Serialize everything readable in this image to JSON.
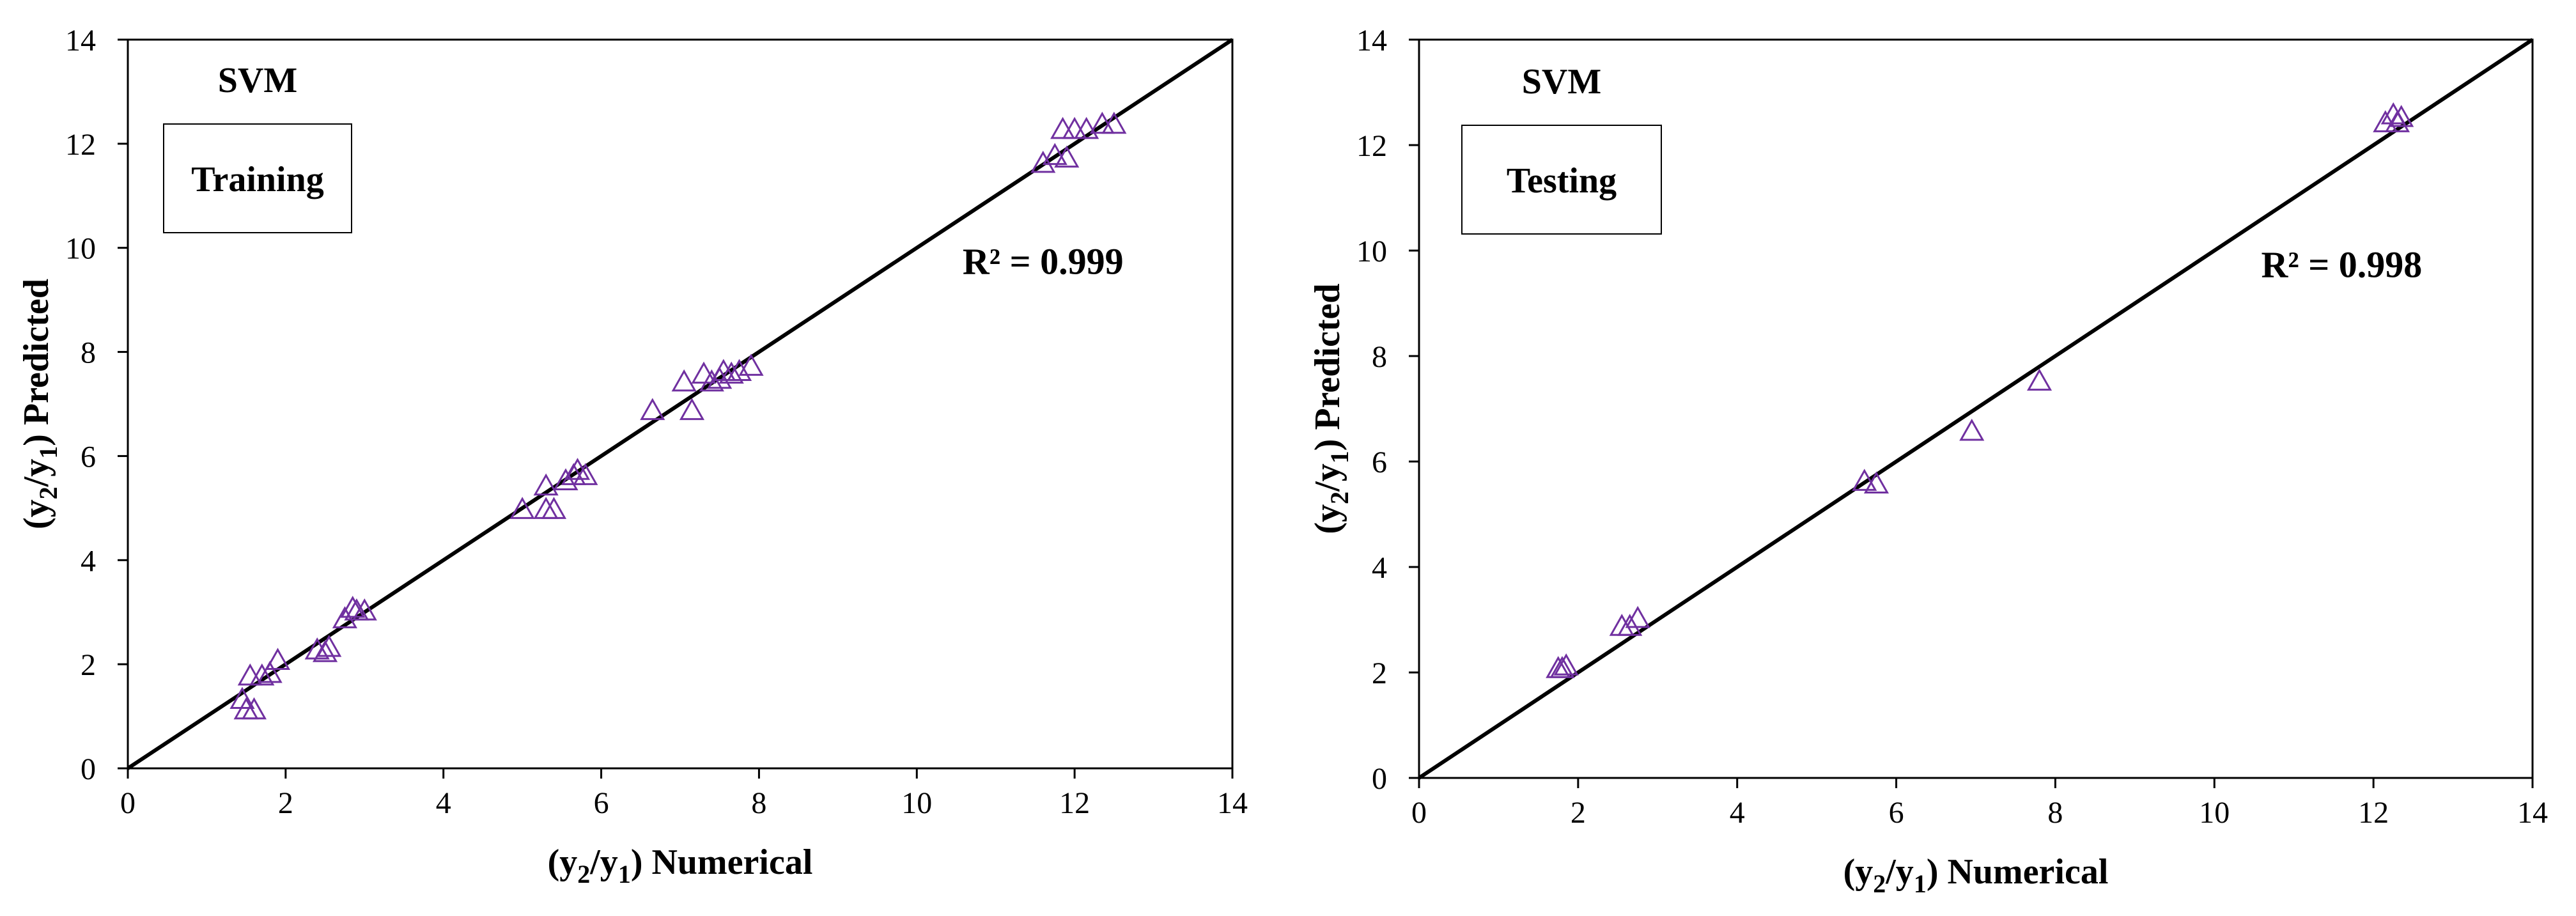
{
  "chart_data": [
    {
      "type": "scatter",
      "model_label": "SVM",
      "set_label": "Training",
      "r2_label": "R² = 0.999",
      "xlabel": {
        "pre": "(y",
        "sub1": "2",
        "mid": "/y",
        "sub2": "1",
        "post": ") Numerical"
      },
      "ylabel": {
        "pre": "(y",
        "sub1": "2",
        "mid": "/y",
        "sub2": "1",
        "post": ") Predicted"
      },
      "xlim": [
        0,
        14
      ],
      "ylim": [
        0,
        14
      ],
      "xticks": [
        0,
        2,
        4,
        6,
        8,
        10,
        12,
        14
      ],
      "yticks": [
        0,
        2,
        4,
        6,
        8,
        10,
        12,
        14
      ],
      "reference_line": {
        "from": [
          0,
          0
        ],
        "to": [
          14,
          14
        ],
        "color": "#000000"
      },
      "marker": "triangle-open",
      "marker_color": "#7030A0",
      "series": [
        {
          "name": "Training",
          "points": [
            [
              1.45,
              1.3
            ],
            [
              1.5,
              1.1
            ],
            [
              1.6,
              1.1
            ],
            [
              1.55,
              1.75
            ],
            [
              1.7,
              1.75
            ],
            [
              1.8,
              1.8
            ],
            [
              1.9,
              2.05
            ],
            [
              2.4,
              2.25
            ],
            [
              2.5,
              2.2
            ],
            [
              2.55,
              2.3
            ],
            [
              2.75,
              2.85
            ],
            [
              2.85,
              3.05
            ],
            [
              2.9,
              3.0
            ],
            [
              3.0,
              3.0
            ],
            [
              5.0,
              4.95
            ],
            [
              5.3,
              4.95
            ],
            [
              5.4,
              4.95
            ],
            [
              5.3,
              5.4
            ],
            [
              5.55,
              5.5
            ],
            [
              5.65,
              5.6
            ],
            [
              5.7,
              5.7
            ],
            [
              5.8,
              5.6
            ],
            [
              6.65,
              6.85
            ],
            [
              7.05,
              7.4
            ],
            [
              7.15,
              6.85
            ],
            [
              7.3,
              7.55
            ],
            [
              7.4,
              7.4
            ],
            [
              7.5,
              7.45
            ],
            [
              7.55,
              7.6
            ],
            [
              7.65,
              7.55
            ],
            [
              7.75,
              7.6
            ],
            [
              7.9,
              7.7
            ],
            [
              11.6,
              11.6
            ],
            [
              11.75,
              11.75
            ],
            [
              11.85,
              12.25
            ],
            [
              11.9,
              11.7
            ],
            [
              12.0,
              12.25
            ],
            [
              12.15,
              12.25
            ],
            [
              12.35,
              12.35
            ],
            [
              12.5,
              12.35
            ]
          ]
        }
      ]
    },
    {
      "type": "scatter",
      "model_label": "SVM",
      "set_label": "Testing",
      "r2_label": "R² = 0.998",
      "xlabel": {
        "pre": "(y",
        "sub1": "2",
        "mid": "/y",
        "sub2": "1",
        "post": ") Numerical"
      },
      "ylabel": {
        "pre": "(y",
        "sub1": "2",
        "mid": "/y",
        "sub2": "1",
        "post": ") Predicted"
      },
      "xlim": [
        0,
        14
      ],
      "ylim": [
        0,
        14
      ],
      "xticks": [
        0,
        2,
        4,
        6,
        8,
        10,
        12,
        14
      ],
      "yticks": [
        0,
        2,
        4,
        6,
        8,
        10,
        12,
        14
      ],
      "reference_line": {
        "from": [
          0,
          0
        ],
        "to": [
          14,
          14
        ],
        "color": "#000000"
      },
      "marker": "triangle-open",
      "marker_color": "#7030A0",
      "series": [
        {
          "name": "Testing",
          "points": [
            [
              1.75,
              2.05
            ],
            [
              1.85,
              2.1
            ],
            [
              1.8,
              2.05
            ],
            [
              2.55,
              2.85
            ],
            [
              2.65,
              2.85
            ],
            [
              2.75,
              3.0
            ],
            [
              5.6,
              5.6
            ],
            [
              5.75,
              5.55
            ],
            [
              6.95,
              6.55
            ],
            [
              7.8,
              7.5
            ],
            [
              12.15,
              12.4
            ],
            [
              12.25,
              12.55
            ],
            [
              12.3,
              12.4
            ],
            [
              12.35,
              12.5
            ]
          ]
        }
      ]
    }
  ]
}
